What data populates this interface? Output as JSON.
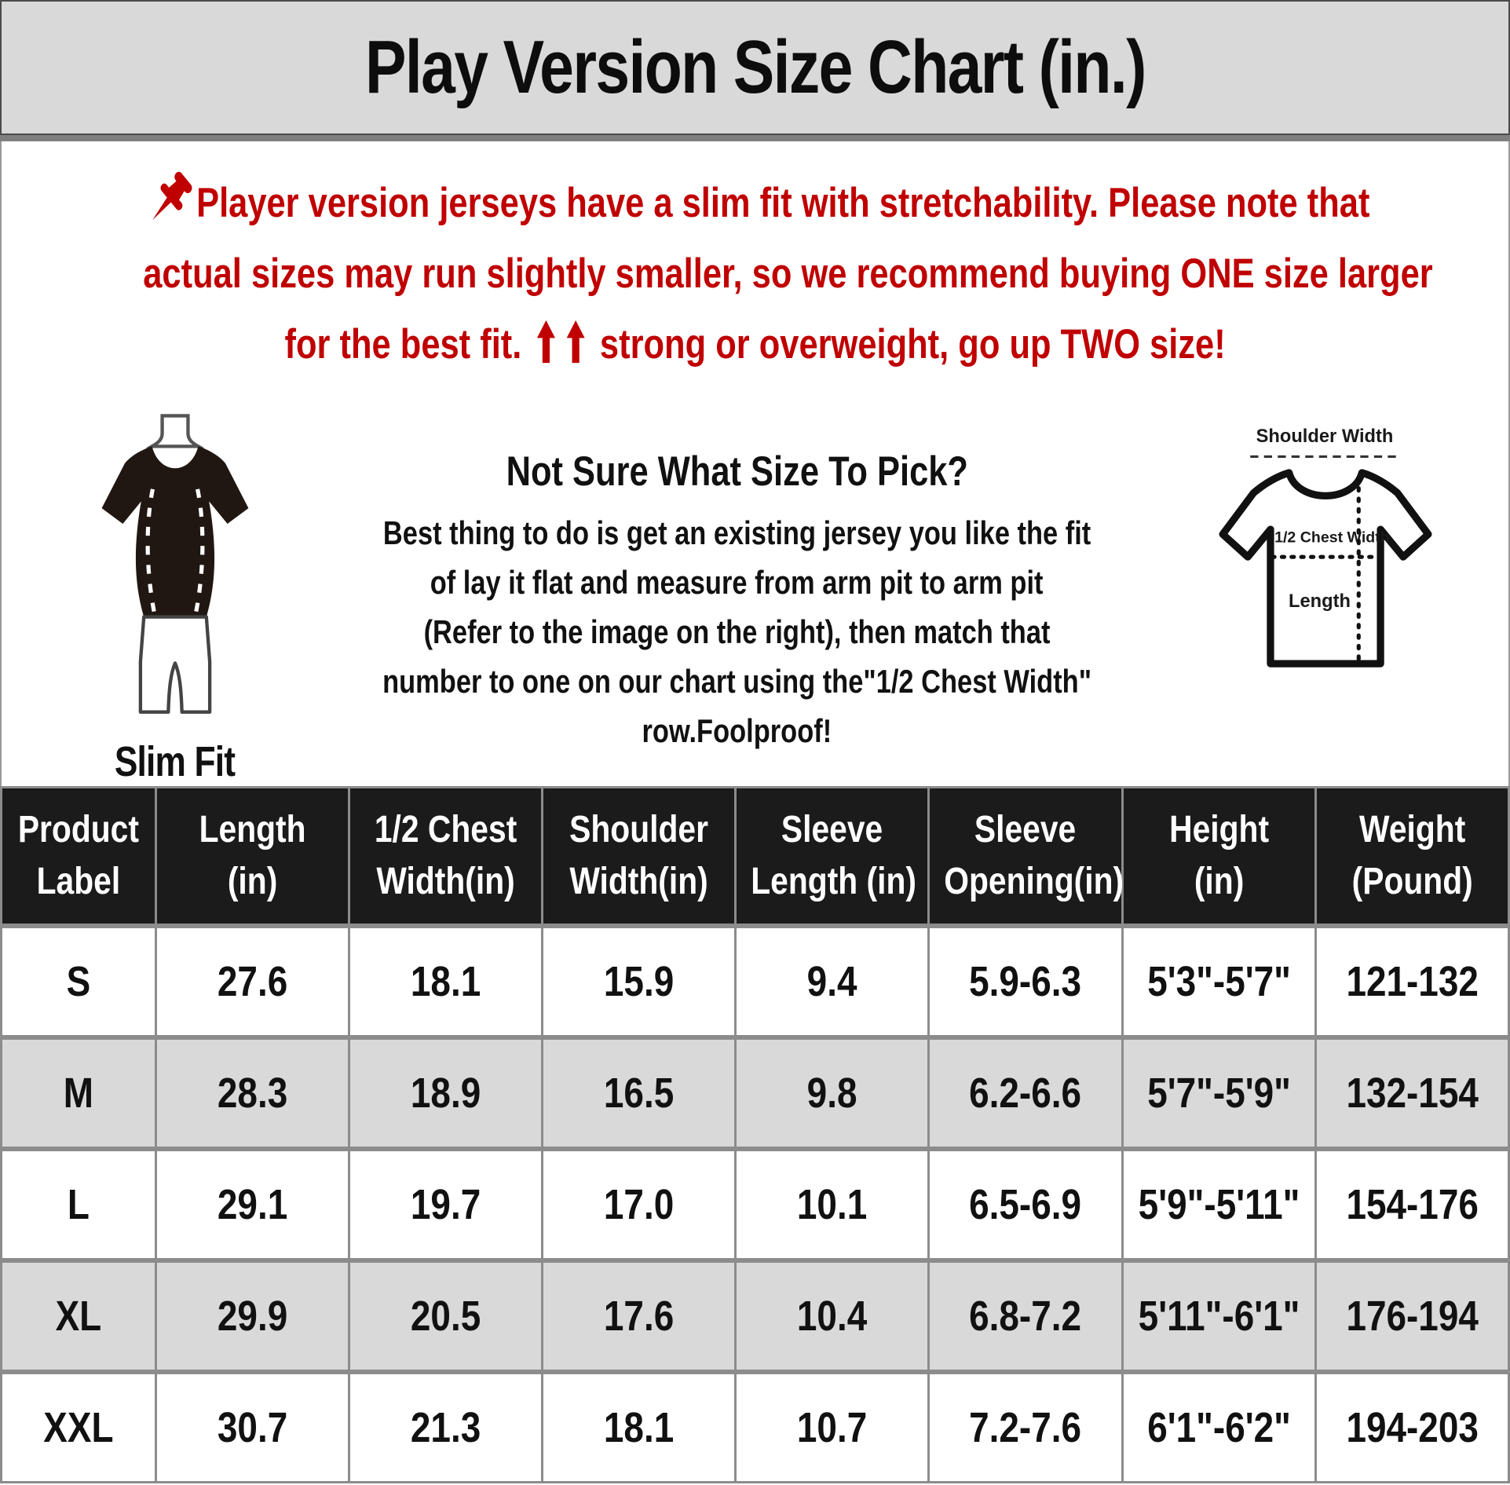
{
  "title": "Play Version Size Chart (in.)",
  "notice": {
    "lines": [
      "Player version jerseys have a slim fit with stretchability. Please note that",
      "actual sizes may run slightly smaller, so we recommend buying ONE size larger"
    ],
    "line3_before": "for the best fit.",
    "line3_after": "strong or overweight, go up TWO size!"
  },
  "icons": {
    "pushpin": "📌",
    "up_arrow": "⬆"
  },
  "slim_fit": {
    "label": "Slim Fit"
  },
  "size_help": {
    "heading": "Not Sure What Size To Pick?",
    "lines": [
      "Best thing to do is get an existing jersey you like the fit",
      "of lay it flat and measure from arm pit to arm pit",
      "(Refer to the image on the right), then match that",
      "number to one on our chart using the\"1/2 Chest Width\"",
      "row.Foolproof!"
    ]
  },
  "diagram": {
    "shoulder_width_label": "Shoulder Width",
    "half_chest_label": "1/2 Chest Width",
    "length_label": "Length"
  },
  "table": {
    "headers": [
      [
        "Product",
        "Label"
      ],
      [
        "Length",
        "(in)"
      ],
      [
        "1/2 Chest",
        "Width(in)"
      ],
      [
        "Shoulder",
        "Width(in)"
      ],
      [
        "Sleeve",
        "Length (in)"
      ],
      [
        "Sleeve",
        "Opening(in)"
      ],
      [
        "Height",
        "(in)"
      ],
      [
        "Weight",
        "(Pound)"
      ]
    ],
    "rows": [
      [
        "S",
        "27.6",
        "18.1",
        "15.9",
        "9.4",
        "5.9-6.3",
        "5'3\"-5'7\"",
        "121-132"
      ],
      [
        "M",
        "28.3",
        "18.9",
        "16.5",
        "9.8",
        "6.2-6.6",
        "5'7\"-5'9\"",
        "132-154"
      ],
      [
        "L",
        "29.1",
        "19.7",
        "17.0",
        "10.1",
        "6.5-6.9",
        "5'9\"-5'11\"",
        "154-176"
      ],
      [
        "XL",
        "29.9",
        "20.5",
        "17.6",
        "10.4",
        "6.8-7.2",
        "5'11\"-6'1\"",
        "176-194"
      ],
      [
        "XXL",
        "30.7",
        "21.3",
        "18.1",
        "10.7",
        "7.2-7.6",
        "6'1\"-6'2\"",
        "194-203"
      ]
    ]
  },
  "colors": {
    "accent_red": "#c00000",
    "title_band_bg": "#d9d9d9",
    "table_header_bg": "#1b1b1b",
    "row_alt_bg": "#d9d9d9",
    "grid_gray": "#8c8c8c"
  }
}
